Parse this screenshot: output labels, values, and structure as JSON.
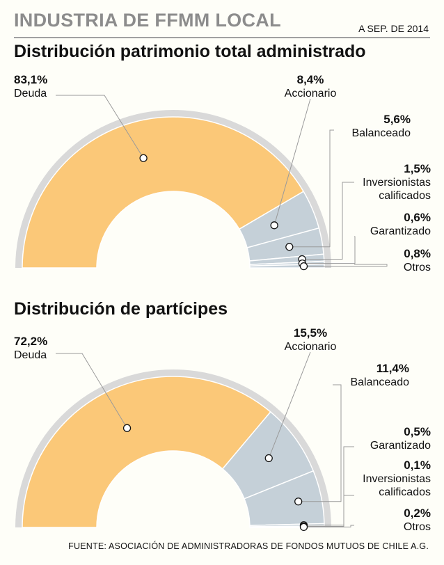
{
  "header": {
    "title": "INDUSTRIA DE FFMM LOCAL",
    "date": "A SEP. DE 2014"
  },
  "footer": {
    "source": "FUENTE: ASOCIACIÓN DE ADMINISTRADORAS DE FONDOS MUTUOS DE CHILE A.G."
  },
  "colors": {
    "primary": "#fbc878",
    "secondary": "#c5d0d8",
    "ring": "#d9d9d9",
    "leader": "#9a9a9a"
  },
  "chart_data": [
    {
      "type": "pie",
      "variant": "semi-donut",
      "title": "Distribución patrimonio total administrado",
      "categories": [
        "Deuda",
        "Accionario",
        "Balanceado",
        "Inversionistas calificados",
        "Garantizado",
        "Otros"
      ],
      "values": [
        83.1,
        8.4,
        5.6,
        1.5,
        0.6,
        0.8
      ],
      "labels": [
        "83,1%",
        "8,4%",
        "5,6%",
        "1,5%",
        "0,6%",
        "0,8%"
      ]
    },
    {
      "type": "pie",
      "variant": "semi-donut",
      "title": "Distribución de partícipes",
      "categories": [
        "Deuda",
        "Accionario",
        "Balanceado",
        "Garantizado",
        "Inversionistas calificados",
        "Otros"
      ],
      "values": [
        72.2,
        15.5,
        11.4,
        0.5,
        0.1,
        0.2
      ],
      "labels": [
        "72,2%",
        "15,5%",
        "11,4%",
        "0,5%",
        "0,1%",
        "0,2%"
      ]
    }
  ]
}
